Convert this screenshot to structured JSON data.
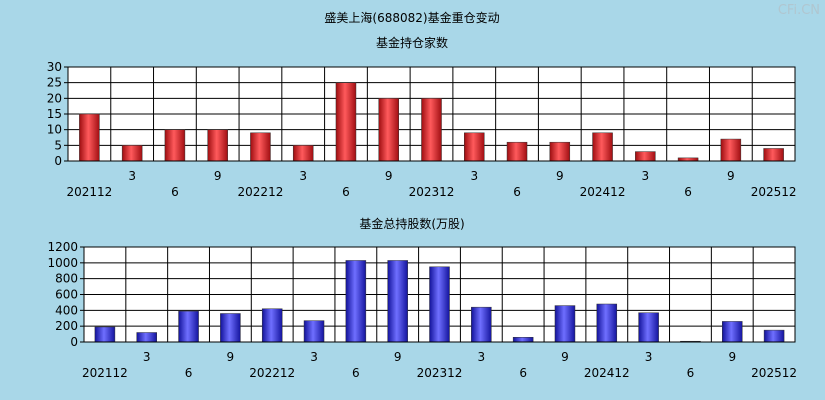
{
  "page": {
    "title": "盛美上海(688082)基金重仓变动",
    "watermark": "CFi.CN"
  },
  "chart_data": [
    {
      "type": "bar",
      "title": "基金持仓家数",
      "categories": [
        "202112",
        "3",
        "6",
        "9",
        "202212",
        "3",
        "6",
        "9",
        "202312",
        "3",
        "6",
        "9",
        "202412",
        "3",
        "6",
        "9",
        "202512"
      ],
      "values": [
        15,
        5,
        10,
        10,
        9,
        5,
        25,
        20,
        20,
        9,
        6,
        6,
        9,
        3,
        1,
        7,
        4
      ],
      "ylim": [
        0,
        30
      ],
      "yticks": [
        0,
        5,
        10,
        15,
        20,
        25,
        30
      ],
      "bar_color": "#e0262a",
      "grid": true
    },
    {
      "type": "bar",
      "title": "基金总持股数(万股)",
      "categories": [
        "202112",
        "3",
        "6",
        "9",
        "202212",
        "3",
        "6",
        "9",
        "202312",
        "3",
        "6",
        "9",
        "202412",
        "3",
        "6",
        "9",
        "202512"
      ],
      "values": [
        190,
        120,
        390,
        360,
        420,
        270,
        1030,
        1030,
        950,
        440,
        60,
        460,
        480,
        370,
        10,
        260,
        150
      ],
      "ylim": [
        0,
        1200
      ],
      "yticks": [
        0,
        200,
        400,
        600,
        800,
        1000,
        1200
      ],
      "bar_color": "#2a2ae0",
      "grid": true
    }
  ]
}
